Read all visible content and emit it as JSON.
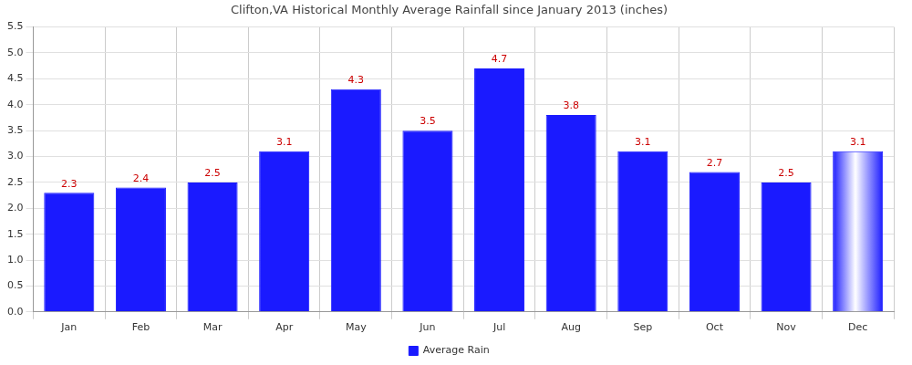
{
  "chart_data": {
    "type": "bar",
    "title": "Clifton,VA Historical Monthly Average Rainfall since January 2013 (inches)",
    "categories": [
      "Jan",
      "Feb",
      "Mar",
      "Apr",
      "May",
      "Jun",
      "Jul",
      "Aug",
      "Sep",
      "Oct",
      "Nov",
      "Dec"
    ],
    "series": [
      {
        "name": "Average Rain",
        "color": "#1a1aff",
        "values": [
          2.3,
          2.4,
          2.5,
          3.1,
          4.3,
          3.5,
          4.7,
          3.8,
          3.1,
          2.7,
          2.5,
          3.1
        ]
      }
    ],
    "ylim": [
      0,
      5.5
    ],
    "yticks": [
      {
        "value": 0,
        "label": "0.0"
      },
      0.5,
      {
        "value": 1,
        "label": "1.0"
      },
      1.5,
      {
        "value": 2,
        "label": "2.0"
      },
      2.5,
      {
        "value": 3,
        "label": "3.0"
      },
      3.5,
      {
        "value": 4,
        "label": "4.0"
      },
      4.5,
      {
        "value": 5,
        "label": "5.0"
      },
      5.5
    ],
    "grid": true,
    "legend": "bottom",
    "data_labels": true
  }
}
